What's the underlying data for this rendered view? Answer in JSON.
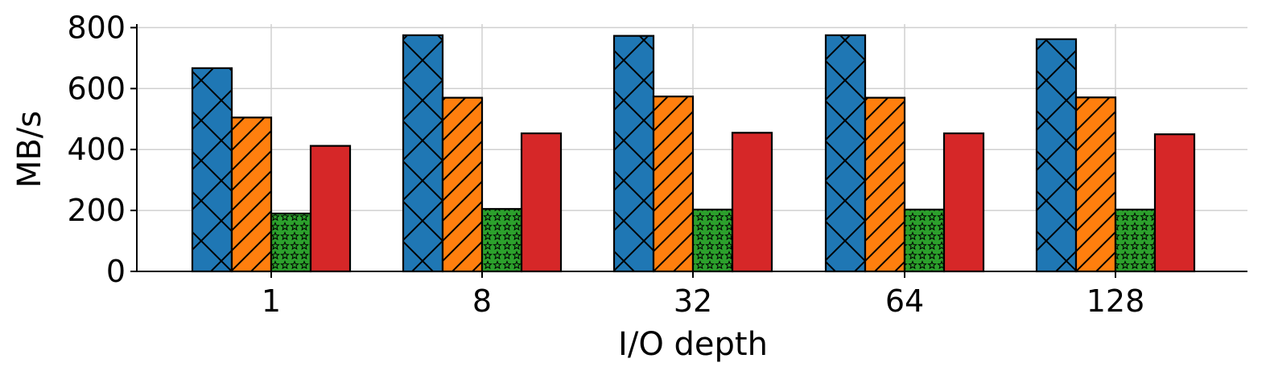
{
  "chart_data": {
    "type": "bar",
    "xlabel": "I/O depth",
    "ylabel": "MB/s",
    "categories": [
      "1",
      "8",
      "32",
      "64",
      "128"
    ],
    "ylim": [
      0,
      810
    ],
    "yticks": [
      0,
      200,
      400,
      600,
      800
    ],
    "grid": true,
    "legend": "none",
    "series": [
      {
        "values": [
          667,
          775,
          773,
          775,
          762
        ],
        "color": "#1f77b4",
        "hatch": "cross-diagonal"
      },
      {
        "values": [
          505,
          570,
          574,
          570,
          571
        ],
        "color": "#ff7f0e",
        "hatch": "forward-diagonal"
      },
      {
        "values": [
          190,
          205,
          203,
          203,
          203
        ],
        "color": "#2ca02c",
        "hatch": "stars"
      },
      {
        "values": [
          412,
          453,
          455,
          453,
          450
        ],
        "color": "#d62728",
        "hatch": "none"
      }
    ]
  }
}
